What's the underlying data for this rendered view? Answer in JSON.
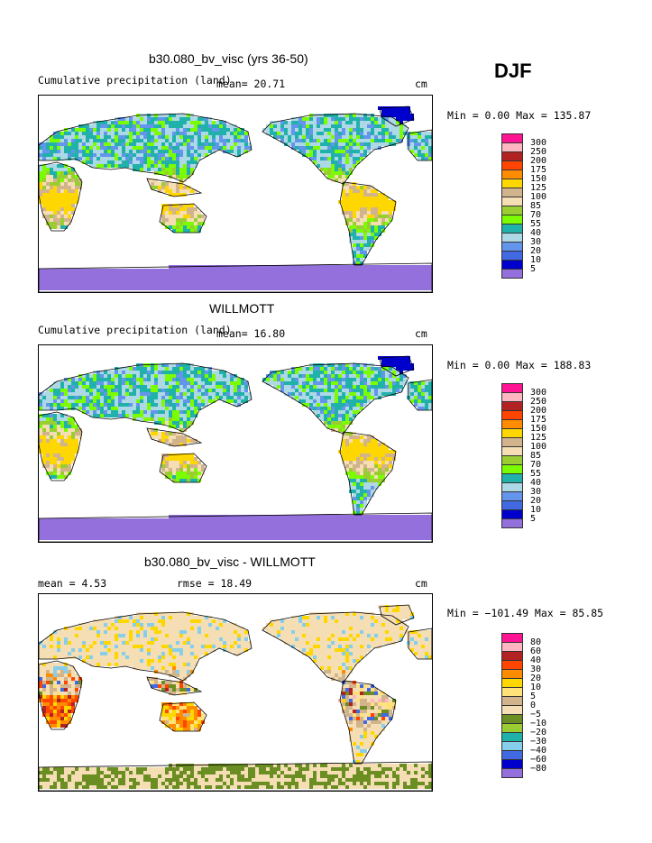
{
  "season": "DJF",
  "panels": [
    {
      "title": "b30.080_bv_visc (yrs 36-50)",
      "subtitle_left": "Cumulative precipitation (land)",
      "stat_left": "mean=  20.71",
      "stat_right": "",
      "units": "cm",
      "minmax": "Min =   0.00 Max = 135.87",
      "scale": "precip"
    },
    {
      "title": "WILLMOTT",
      "subtitle_left": "Cumulative precipitation (land)",
      "stat_left": "mean=  16.80",
      "stat_right": "",
      "units": "cm",
      "minmax": "Min =   0.00 Max = 188.83",
      "scale": "precip"
    },
    {
      "title": "b30.080_bv_visc - WILLMOTT",
      "subtitle_left": "mean =    4.53",
      "stat_left": "",
      "stat_right": "rmse =   18.49",
      "units": "cm",
      "minmax": "Min = −101.49 Max =  85.85",
      "scale": "diff"
    }
  ],
  "chart_data": [
    {
      "type": "heatmap",
      "title": "b30.080_bv_visc (yrs 36-50)",
      "subtitle": "Cumulative precipitation (land)",
      "units": "cm",
      "mean": 20.71,
      "min": 0.0,
      "max": 135.87,
      "legend": {
        "levels": [
          "300",
          "250",
          "200",
          "175",
          "150",
          "125",
          "100",
          "85",
          "70",
          "55",
          "40",
          "30",
          "20",
          "10",
          "5"
        ],
        "colors": [
          "#ff1493",
          "#ffb6c1",
          "#b22222",
          "#ff4500",
          "#ff8c00",
          "#ffd700",
          "#d2b48c",
          "#f5deb3",
          "#9acd32",
          "#7cfc00",
          "#20b2aa",
          "#add8e6",
          "#6495ed",
          "#4169e1",
          "#0000cd",
          "#9370db"
        ]
      }
    },
    {
      "type": "heatmap",
      "title": "WILLMOTT",
      "subtitle": "Cumulative precipitation (land)",
      "units": "cm",
      "mean": 16.8,
      "min": 0.0,
      "max": 188.83,
      "legend": {
        "levels": [
          "300",
          "250",
          "200",
          "175",
          "150",
          "125",
          "100",
          "85",
          "70",
          "55",
          "40",
          "30",
          "20",
          "10",
          "5"
        ],
        "colors": [
          "#ff1493",
          "#ffb6c1",
          "#b22222",
          "#ff4500",
          "#ff8c00",
          "#ffd700",
          "#d2b48c",
          "#f5deb3",
          "#9acd32",
          "#7cfc00",
          "#20b2aa",
          "#add8e6",
          "#6495ed",
          "#4169e1",
          "#0000cd",
          "#9370db"
        ]
      }
    },
    {
      "type": "heatmap",
      "title": "b30.080_bv_visc - WILLMOTT",
      "units": "cm",
      "mean": 4.53,
      "rmse": 18.49,
      "min": -101.49,
      "max": 85.85,
      "legend": {
        "levels": [
          "80",
          "60",
          "40",
          "30",
          "20",
          "10",
          "5",
          "0",
          "−5",
          "−10",
          "−20",
          "−30",
          "−40",
          "−60",
          "−80"
        ],
        "colors": [
          "#ff1493",
          "#ffb6c1",
          "#b22222",
          "#ff4500",
          "#ff8c00",
          "#ffd700",
          "#ffe27a",
          "#d2b48c",
          "#f5deb3",
          "#6b8e23",
          "#9acd32",
          "#20b2aa",
          "#87ceeb",
          "#4169e1",
          "#0000cd",
          "#9370db"
        ]
      }
    }
  ]
}
